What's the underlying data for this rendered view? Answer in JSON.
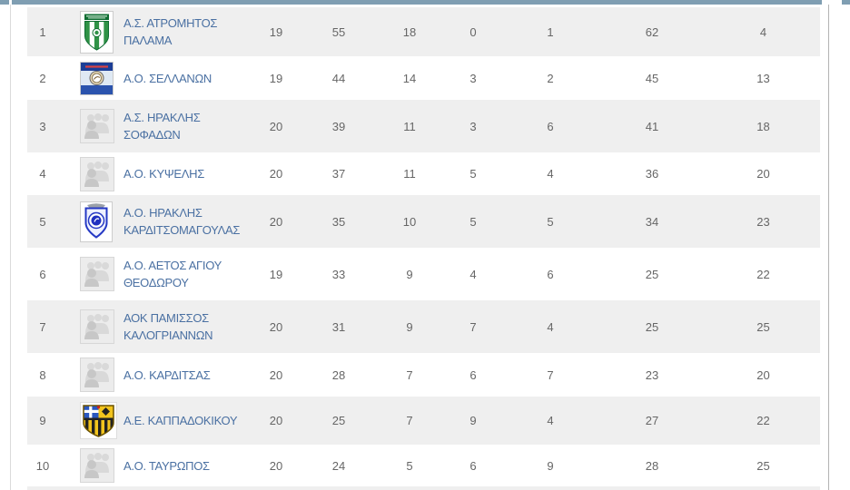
{
  "widget": "league-standings-table",
  "colors": {
    "top_bar": "#7f9eb2",
    "alt_row_bg": "#efefef",
    "team_link_blue": "#4a70a2",
    "stat_text_gray": "#666666"
  },
  "standings": {
    "rows": [
      {
        "pos": "1",
        "name": "Α.Σ. ΑΤΡΟΜΗΤΟΣ ΠΑΛΑΜΑ",
        "logo": "atromitos-crest-logo",
        "gp": "19",
        "pts": "55",
        "w": "18",
        "d": "0",
        "l": "1",
        "gf": "62",
        "ga": "4"
      },
      {
        "pos": "2",
        "name": "Α.Ο. ΣΕΛΛΑΝΩΝ",
        "logo": "sellanon-crest-logo",
        "gp": "19",
        "pts": "44",
        "w": "14",
        "d": "3",
        "l": "2",
        "gf": "45",
        "ga": "13"
      },
      {
        "pos": "3",
        "name": "Α.Σ. ΗΡΑΚΛΗΣ ΣΟΦΑΔΩΝ",
        "logo": "team-placeholder-icon",
        "gp": "20",
        "pts": "39",
        "w": "11",
        "d": "3",
        "l": "6",
        "gf": "41",
        "ga": "18"
      },
      {
        "pos": "4",
        "name": "Α.Ο. ΚΥΨΕΛΗΣ",
        "logo": "team-placeholder-icon",
        "gp": "20",
        "pts": "37",
        "w": "11",
        "d": "5",
        "l": "4",
        "gf": "36",
        "ga": "20"
      },
      {
        "pos": "5",
        "name": "Α.Ο. ΗΡΑΚΛΗΣ ΚΑΡΔΙΤΣΟΜΑΓΟΥΛΑΣ",
        "logo": "iraklis-crest-logo",
        "gp": "20",
        "pts": "35",
        "w": "10",
        "d": "5",
        "l": "5",
        "gf": "34",
        "ga": "23"
      },
      {
        "pos": "6",
        "name": "Α.Ο. ΑΕΤΟΣ ΑΓΙΟΥ ΘΕΟΔΩΡΟΥ",
        "logo": "team-placeholder-icon",
        "gp": "19",
        "pts": "33",
        "w": "9",
        "d": "4",
        "l": "6",
        "gf": "25",
        "ga": "22"
      },
      {
        "pos": "7",
        "name": "ΑΟΚ ΠΑΜΙΣΣΟΣ ΚΑΛΟΓΡΙΑΝΝΩΝ",
        "logo": "team-placeholder-icon",
        "gp": "20",
        "pts": "31",
        "w": "9",
        "d": "7",
        "l": "4",
        "gf": "25",
        "ga": "25"
      },
      {
        "pos": "8",
        "name": "Α.Ο. ΚΑΡΔΙΤΣΑΣ",
        "logo": "team-placeholder-icon",
        "gp": "20",
        "pts": "28",
        "w": "7",
        "d": "6",
        "l": "7",
        "gf": "23",
        "ga": "20"
      },
      {
        "pos": "9",
        "name": "Α.Ε. ΚΑΠΠΑΔΟΚΙΚΟΥ",
        "logo": "kappadokikou-crest-logo",
        "gp": "20",
        "pts": "25",
        "w": "7",
        "d": "9",
        "l": "4",
        "gf": "27",
        "ga": "22"
      },
      {
        "pos": "10",
        "name": "Α.Ο. ΤΑΥΡΩΠΟΣ",
        "logo": "team-placeholder-icon",
        "gp": "20",
        "pts": "24",
        "w": "5",
        "d": "6",
        "l": "9",
        "gf": "28",
        "ga": "25"
      }
    ]
  }
}
